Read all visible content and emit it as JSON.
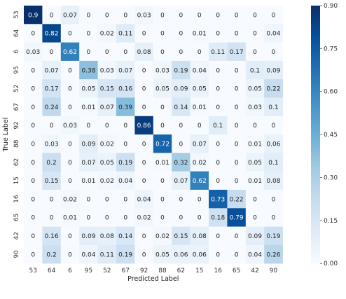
{
  "chart_data": {
    "type": "heatmap",
    "xlabel": "Predicted Label",
    "ylabel": "True Label",
    "labels": [
      "53",
      "64",
      "6",
      "95",
      "52",
      "67",
      "92",
      "88",
      "62",
      "15",
      "16",
      "65",
      "42",
      "90"
    ],
    "values": [
      [
        0.9,
        0,
        0.07,
        0,
        0,
        0,
        0.03,
        0,
        0,
        0,
        0,
        0,
        0,
        0
      ],
      [
        0,
        0.82,
        0,
        0,
        0.02,
        0.11,
        0,
        0,
        0,
        0.01,
        0,
        0,
        0,
        0.04
      ],
      [
        0.03,
        0,
        0.62,
        0,
        0,
        0,
        0.08,
        0,
        0,
        0,
        0.11,
        0.17,
        0,
        0
      ],
      [
        0,
        0.07,
        0,
        0.38,
        0.03,
        0.07,
        0,
        0.03,
        0.19,
        0.04,
        0,
        0,
        0.1,
        0.09
      ],
      [
        0,
        0.17,
        0,
        0.05,
        0.15,
        0.16,
        0,
        0.05,
        0.09,
        0.05,
        0,
        0,
        0.05,
        0.22
      ],
      [
        0,
        0.24,
        0,
        0.01,
        0.07,
        0.39,
        0,
        0,
        0.14,
        0.01,
        0,
        0,
        0.03,
        0.1
      ],
      [
        0,
        0,
        0.03,
        0,
        0,
        0,
        0.86,
        0,
        0,
        0,
        0.1,
        0,
        0,
        0
      ],
      [
        0,
        0.03,
        0,
        0.09,
        0.02,
        0,
        0,
        0.72,
        0,
        0.07,
        0,
        0,
        0.01,
        0.06
      ],
      [
        0,
        0.2,
        0,
        0.07,
        0.05,
        0.19,
        0,
        0.01,
        0.32,
        0.02,
        0,
        0,
        0.05,
        0.1
      ],
      [
        0,
        0.15,
        0,
        0.01,
        0.02,
        0.04,
        0,
        0,
        0.07,
        0.62,
        0,
        0,
        0.01,
        0.08
      ],
      [
        0,
        0,
        0.02,
        0,
        0,
        0,
        0.04,
        0,
        0,
        0,
        0.73,
        0.22,
        0,
        0
      ],
      [
        0,
        0,
        0.01,
        0,
        0,
        0,
        0.02,
        0,
        0,
        0,
        0.18,
        0.79,
        0,
        0
      ],
      [
        0,
        0.16,
        0,
        0.09,
        0.08,
        0.14,
        0,
        0.02,
        0.15,
        0.08,
        0,
        0,
        0.09,
        0.19
      ],
      [
        0,
        0.2,
        0,
        0.04,
        0.11,
        0.19,
        0,
        0.05,
        0.06,
        0.06,
        0,
        0,
        0.04,
        0.26
      ]
    ],
    "vmin": 0,
    "vmax": 0.9,
    "colorbar_ticks": [
      "0.00",
      "0.15",
      "0.30",
      "0.45",
      "0.60",
      "0.75",
      "0.90"
    ],
    "colormap": [
      "#f7fbff",
      "#deebf7",
      "#c6dbef",
      "#9ecae1",
      "#6baed6",
      "#4292c6",
      "#2171b5",
      "#08519c",
      "#08306b"
    ]
  }
}
